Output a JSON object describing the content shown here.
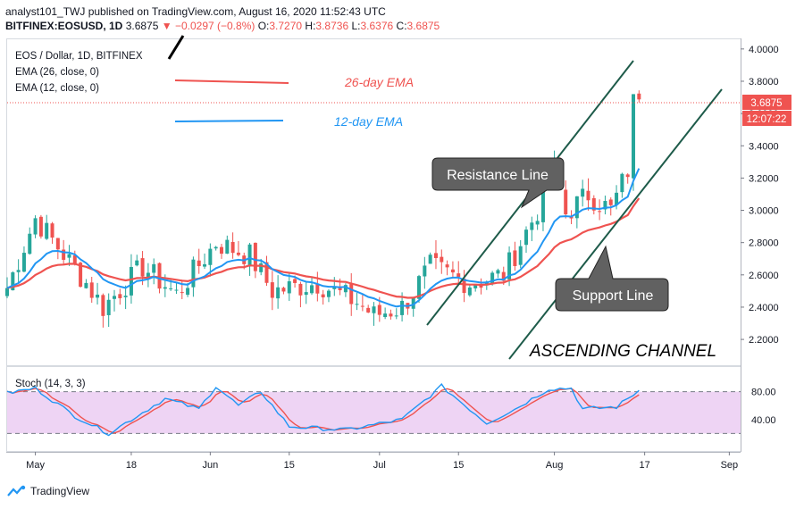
{
  "header": {
    "line1": "analyst101_TWJ published on TradingView.com, August 16, 2020 11:52:43 UTC",
    "symbol": "BITFINEX:EOSUSD, 1D",
    "last": "3.6875",
    "change": "▼ −0.0297 (−0.8%)",
    "o_label": "O:",
    "o": "3.7270",
    "h_label": "H:",
    "h": "3.8736",
    "l_label": "L:",
    "l": "3.6376",
    "c_label": "C:",
    "c": "3.6875"
  },
  "legend": {
    "title": "EOS / Dollar, 1D, BITFINEX",
    "ema26": "EMA (26, close, 0)",
    "ema12": "EMA (12, close, 0)"
  },
  "annotations": {
    "ema26_label": "26-day EMA",
    "ema12_label": "12-day EMA",
    "resistance": "Resistance Line",
    "support": "Support Line",
    "channel": "ASCENDING CHANNEL"
  },
  "stoch_label": "Stoch (14, 3, 3)",
  "price_tag": {
    "value": "3.6875",
    "countdown": "12:07:22"
  },
  "footer": {
    "brand": "TradingView"
  },
  "colors": {
    "up": "#26a69a",
    "down": "#ef5350",
    "ema26": "#ef5350",
    "ema12": "#2196f3",
    "k": "#2196f3",
    "d": "#ef5350",
    "band": "#e1bee7",
    "channel": "#1e5b4a",
    "callout_bg": "#616161"
  },
  "chart_data": {
    "type": "candlestick",
    "title": "EOS / Dollar, 1D, BITFINEX",
    "x_ticks": [
      "May",
      "18",
      "Jun",
      "15",
      "Jul",
      "15",
      "Aug",
      "17",
      "Sep"
    ],
    "y_ticks": [
      "2.2000",
      "2.4000",
      "2.6000",
      "2.8000",
      "3.0000",
      "3.2000",
      "3.4000",
      "3.6000",
      "3.8000",
      "4.0000"
    ],
    "ylim": [
      2.04,
      4.06
    ],
    "stoch_ticks": [
      "40.00",
      "80.00"
    ],
    "stoch_levels": [
      20,
      80
    ],
    "key_points": [
      {
        "date": "2020-04-26",
        "close": 2.52
      },
      {
        "date": "2020-05-01",
        "close": 2.95
      },
      {
        "date": "2020-05-10",
        "close": 2.55
      },
      {
        "date": "2020-05-13",
        "close": 2.4
      },
      {
        "date": "2020-05-20",
        "close": 2.65
      },
      {
        "date": "2020-05-26",
        "close": 2.48
      },
      {
        "date": "2020-06-02",
        "close": 2.8
      },
      {
        "date": "2020-06-08",
        "close": 2.72
      },
      {
        "date": "2020-06-12",
        "close": 2.5
      },
      {
        "date": "2020-06-20",
        "close": 2.55
      },
      {
        "date": "2020-06-27",
        "close": 2.43
      },
      {
        "date": "2020-06-30",
        "close": 2.35
      },
      {
        "date": "2020-07-05",
        "close": 2.4
      },
      {
        "date": "2020-07-10",
        "close": 2.65
      },
      {
        "date": "2020-07-17",
        "close": 2.55
      },
      {
        "date": "2020-07-23",
        "close": 2.6
      },
      {
        "date": "2020-07-29",
        "close": 3.0
      },
      {
        "date": "2020-08-01",
        "close": 3.25
      },
      {
        "date": "2020-08-03",
        "close": 2.98
      },
      {
        "date": "2020-08-07",
        "close": 3.1
      },
      {
        "date": "2020-08-11",
        "close": 3.0
      },
      {
        "date": "2020-08-14",
        "close": 3.25
      },
      {
        "date": "2020-08-15",
        "close": 3.72
      },
      {
        "date": "2020-08-16",
        "close": 3.6875
      }
    ],
    "stoch_k_points": [
      {
        "date": "2020-04-26",
        "value": 78
      },
      {
        "date": "2020-05-01",
        "value": 85
      },
      {
        "date": "2020-05-08",
        "value": 45
      },
      {
        "date": "2020-05-14",
        "value": 20
      },
      {
        "date": "2020-05-24",
        "value": 70
      },
      {
        "date": "2020-05-30",
        "value": 55
      },
      {
        "date": "2020-06-02",
        "value": 88
      },
      {
        "date": "2020-06-06",
        "value": 60
      },
      {
        "date": "2020-06-10",
        "value": 80
      },
      {
        "date": "2020-06-15",
        "value": 30
      },
      {
        "date": "2020-06-25",
        "value": 25
      },
      {
        "date": "2020-07-05",
        "value": 40
      },
      {
        "date": "2020-07-12",
        "value": 88
      },
      {
        "date": "2020-07-20",
        "value": 35
      },
      {
        "date": "2020-07-25",
        "value": 55
      },
      {
        "date": "2020-07-31",
        "value": 84
      },
      {
        "date": "2020-08-04",
        "value": 85
      },
      {
        "date": "2020-08-06",
        "value": 55
      },
      {
        "date": "2020-08-12",
        "value": 58
      },
      {
        "date": "2020-08-16",
        "value": 82
      }
    ]
  }
}
